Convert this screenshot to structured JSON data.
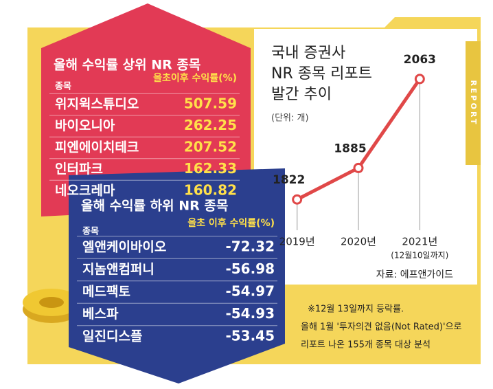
{
  "top_table": {
    "title": "올해 수익률 상위 NR 종목",
    "col_headers": [
      "종목",
      "올초이후 수익률(%)"
    ],
    "rows": [
      [
        "위지윅스튜디오",
        507.59
      ],
      [
        "바이오니아",
        262.25
      ],
      [
        "피엔에이치테크",
        207.52
      ],
      [
        "인터파크",
        162.33
      ],
      [
        "네오크레마",
        160.82
      ]
    ]
  },
  "bottom_table": {
    "title": "올해 수익률 하위 NR 종목",
    "col_headers": [
      "종목",
      "올초 이후 수익률(%)"
    ],
    "rows": [
      [
        "엘앤케이바이오",
        -72.32
      ],
      [
        "지놈앤컴퍼니",
        -56.98
      ],
      [
        "메드팩토",
        -54.97
      ],
      [
        "베스파",
        -54.93
      ],
      [
        "일진디스플",
        -53.45
      ]
    ]
  },
  "chart_data": {
    "type": "line",
    "title": [
      "국내 증권사",
      "NR 종목 리포트",
      "발간 추이"
    ],
    "subtitle": "(단위: 개)",
    "categories": [
      "2019년",
      "2020년",
      "2021년"
    ],
    "category_note": "(12월10일까지)",
    "values": [
      1822,
      1885,
      2063
    ],
    "color": "#e04848",
    "ylim": [
      1700,
      2100
    ]
  },
  "source": "자료: 에프앤가이드",
  "note": [
    "※12월 13일까지 등락률.",
    "올해 1월 '투자의견 없음(Not Rated)'으로",
    "리포트 나온 155개 종목 대상 분석"
  ],
  "side_label": "REPORT"
}
